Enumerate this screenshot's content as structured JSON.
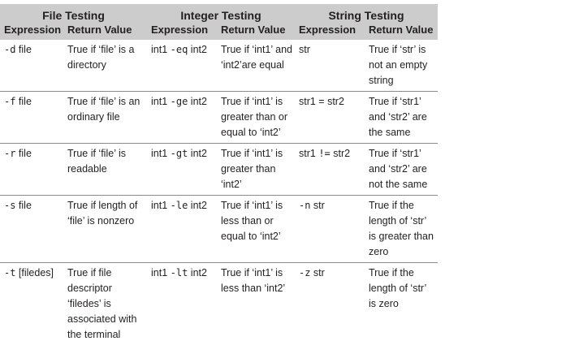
{
  "headers": {
    "groups": [
      "File Testing",
      "Integer Testing",
      "String Testing"
    ],
    "columns": [
      "Expression",
      "Return Value",
      "Expression",
      "Return Value",
      "Expression",
      "Return Value"
    ]
  },
  "rows": [
    {
      "file_op": "-d",
      "file_arg": " file",
      "file_ret": "True if ‘file’ is a directory",
      "int_a": "int1 ",
      "int_op": "-eq",
      "int_b": " int2",
      "int_ret": "True if ‘int1’ and ‘int2’are equal",
      "str_a": "str",
      "str_op": "",
      "str_b": "",
      "str_ret": "True if ‘str’ is not an empty string"
    },
    {
      "file_op": "-f",
      "file_arg": " file",
      "file_ret": "True if ‘file’ is an ordinary file",
      "int_a": "int1 ",
      "int_op": "-ge",
      "int_b": " int2",
      "int_ret": "True if ‘int1’ is greater than or equal to ‘int2’",
      "str_a": "str1 = str2",
      "str_op": "",
      "str_b": "",
      "str_ret": "True if ‘str1’ and ‘str2’ are the same"
    },
    {
      "file_op": "-r",
      "file_arg": " file",
      "file_ret": "True if ‘file’ is readable",
      "int_a": "int1 ",
      "int_op": "-gt",
      "int_b": " int2",
      "int_ret": "True if ‘int1’ is greater than ‘int2’",
      "str_a": "str1 ",
      "str_op": "!=",
      "str_b": " str2",
      "str_ret": "True if ‘str1’ and ‘str2’ are not the same"
    },
    {
      "file_op": "-s",
      "file_arg": " file",
      "file_ret": "True if length of ‘file’ is nonzero",
      "int_a": "int1 ",
      "int_op": "-le",
      "int_b": " int2",
      "int_ret": "True if ‘int1’ is less than or equal to ‘int2’",
      "str_a": "",
      "str_op": "-n",
      "str_b": " str",
      "str_ret": "True if the length of ‘str’ is greater than zero"
    },
    {
      "file_op": "-t",
      "file_arg": " [filedes]",
      "file_ret": "True if file descriptor ‘filedes’ is associated with the terminal",
      "int_a": "int1 ",
      "int_op": "-lt",
      "int_b": " int2",
      "int_ret": "True if ‘int1’ is less than ‘int2’",
      "str_a": "",
      "str_op": "-z",
      "str_b": " str",
      "str_ret": "True if the length of ‘str’ is zero"
    }
  ]
}
